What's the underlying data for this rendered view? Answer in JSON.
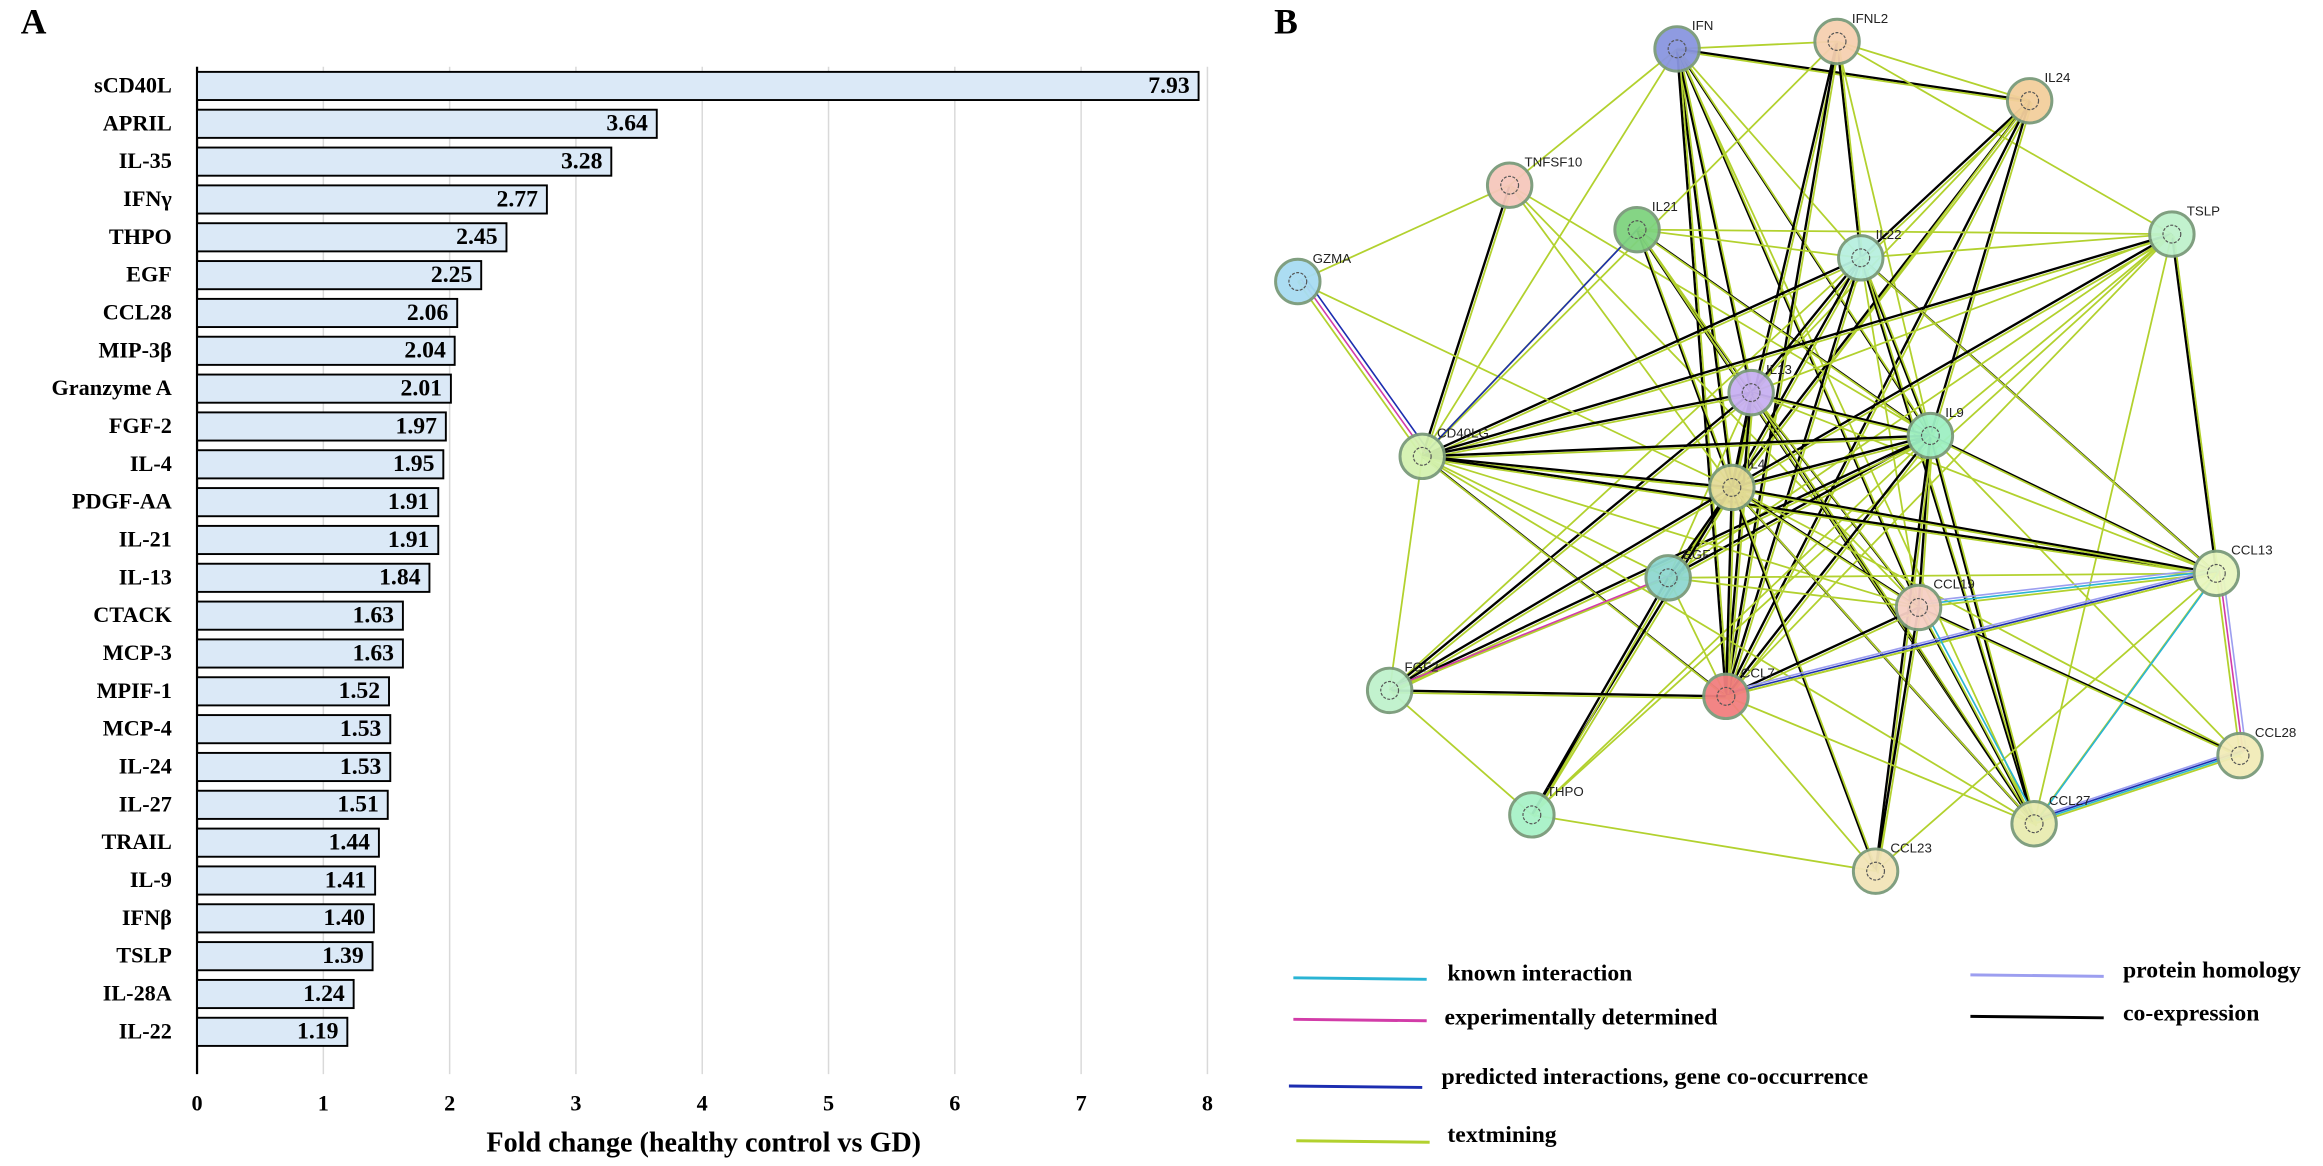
{
  "panel_labels": [
    "A",
    "B"
  ],
  "chart_data": {
    "type": "bar",
    "orientation": "horizontal",
    "x_label": "Fold change (healthy control vs GD)",
    "categories": [
      "sCD40L",
      "APRIL",
      "IL-35",
      "IFNγ",
      "THPO",
      "EGF",
      "CCL28",
      "MIP-3β",
      "Granzyme A",
      "FGF-2",
      "IL-4",
      "PDGF-AA",
      "IL-21",
      "IL-13",
      "CTACK",
      "MCP-3",
      "MPIF-1",
      "MCP-4",
      "IL-24",
      "IL-27",
      "TRAIL",
      "IL-9",
      "IFNβ",
      "TSLP",
      "IL-28A",
      "IL-22"
    ],
    "values": [
      7.93,
      3.64,
      3.28,
      2.77,
      2.45,
      2.25,
      2.06,
      2.04,
      2.01,
      1.97,
      1.95,
      1.91,
      1.91,
      1.84,
      1.63,
      1.63,
      1.52,
      1.53,
      1.53,
      1.51,
      1.44,
      1.41,
      1.4,
      1.39,
      1.24,
      1.19
    ],
    "value_labels": [
      "7.93",
      "3.64",
      "3.28",
      "2.77",
      "2.45",
      "2.25",
      "2.06",
      "2.04",
      "2.01",
      "1.97",
      "1.95",
      "1.91",
      "1.91",
      "1.84",
      "1.63",
      "1.63",
      "1.52",
      "1.53",
      "1.53",
      "1.51",
      "1.44",
      "1.41",
      "1.40",
      "1.39",
      "1.24",
      "1.19"
    ],
    "color": "#dbe9f7",
    "xlim": [
      0,
      8
    ],
    "xticks": [
      0,
      1,
      2,
      3,
      4,
      5,
      6,
      7,
      8
    ],
    "grid": true
  },
  "network": {
    "nodes": [
      {
        "label": "IFN"
      },
      {
        "label": "IFNL2"
      },
      {
        "label": "IL24"
      },
      {
        "label": "TNFSF10"
      },
      {
        "label": "IL21"
      },
      {
        "label": "IL22"
      },
      {
        "label": "TSLP"
      },
      {
        "label": "GZMA"
      },
      {
        "label": "IL13"
      },
      {
        "label": "IL9"
      },
      {
        "label": "CD40LG"
      },
      {
        "label": "IL4"
      },
      {
        "label": "CCL13"
      },
      {
        "label": "EGF"
      },
      {
        "label": "CCL19"
      },
      {
        "label": "FGF2"
      },
      {
        "label": "CCL7"
      },
      {
        "label": "CCL28"
      },
      {
        "label": "THPO"
      },
      {
        "label": "CCL27"
      },
      {
        "label": "CCL23"
      }
    ],
    "legend": [
      {
        "label": "known interaction",
        "color": "#2ab4d4"
      },
      {
        "label": "experimentally determined",
        "color": "#d23ca8"
      },
      {
        "label": "predicted interactions, gene co-occurrence",
        "color": "#1c2db0"
      },
      {
        "label": "textmining",
        "color": "#b2d12e"
      },
      {
        "label": "protein homology",
        "color": "#9c9ef0"
      },
      {
        "label": "co-expression",
        "color": "#000000"
      }
    ]
  }
}
